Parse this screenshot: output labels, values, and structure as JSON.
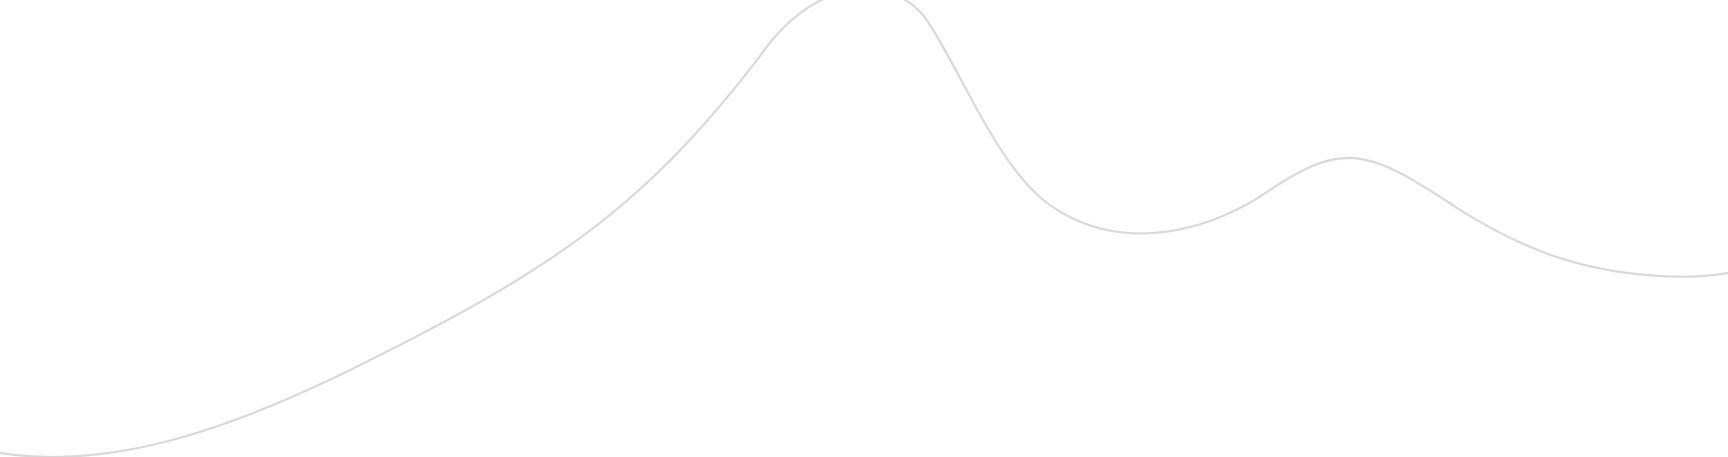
{
  "background_color": "#ffffff",
  "wave": {
    "stroke_color": "#d9d9d9",
    "shape": "decorative-curve"
  }
}
